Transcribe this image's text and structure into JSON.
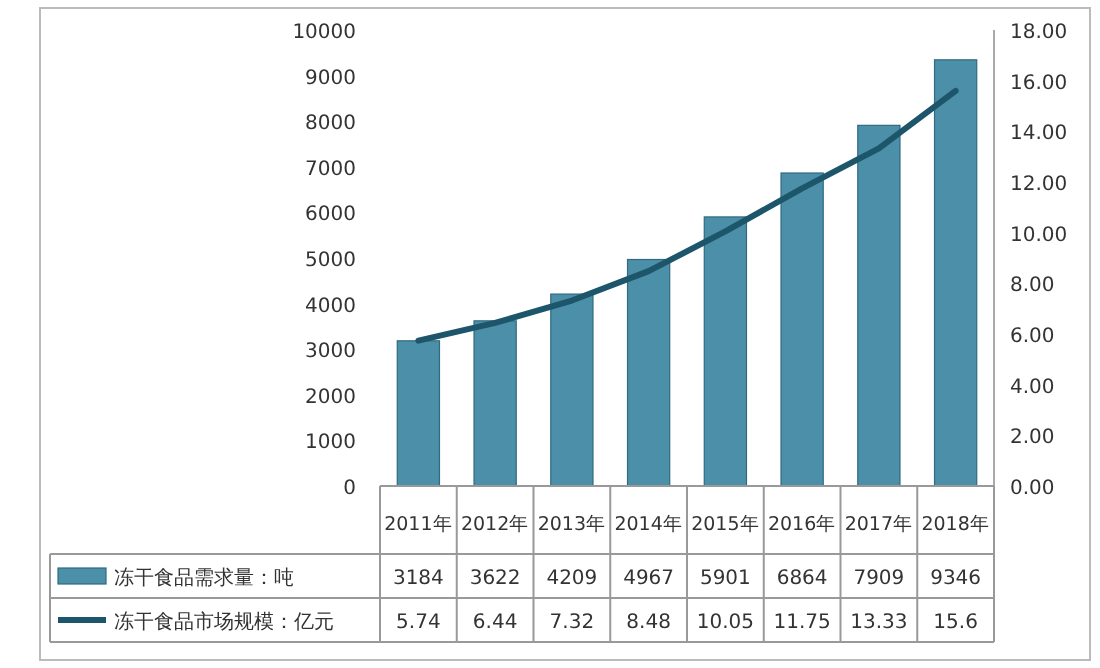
{
  "chart_data": {
    "type": "bar",
    "categories": [
      "2011年",
      "2012年",
      "2013年",
      "2014年",
      "2015年",
      "2016年",
      "2017年",
      "2018年"
    ],
    "series": [
      {
        "name": "冻干食品需求量：吨",
        "color": "#4b8fa8",
        "values": [
          3184,
          3622,
          4209,
          4967,
          5901,
          6864,
          7909,
          9346
        ]
      },
      {
        "name": "冻干食品市场规模：亿元",
        "type": "line",
        "axis": "y2",
        "color": "#1d566b",
        "values": [
          5.74,
          6.44,
          7.32,
          8.48,
          10.05,
          11.75,
          13.33,
          15.6
        ]
      }
    ],
    "ylim": [
      0,
      10000
    ],
    "yticks": [
      0,
      1000,
      2000,
      3000,
      4000,
      5000,
      6000,
      7000,
      8000,
      9000,
      10000
    ],
    "y2lim": [
      0,
      18
    ],
    "y2ticks": [
      {
        "value": 0,
        "label": "0.00"
      },
      {
        "value": 2,
        "label": "2.00"
      },
      {
        "value": 4,
        "label": "4.00"
      },
      {
        "value": 6,
        "label": "6.00"
      },
      {
        "value": 8,
        "label": "8.00"
      },
      {
        "value": 10,
        "label": "10.00"
      },
      {
        "value": 12,
        "label": "12.00"
      },
      {
        "value": 14,
        "label": "14.00"
      },
      {
        "value": 16,
        "label": "16.00"
      },
      {
        "value": 18,
        "label": "18.00"
      }
    ],
    "data_labels": true,
    "legend": "bottom",
    "marker": "none"
  }
}
